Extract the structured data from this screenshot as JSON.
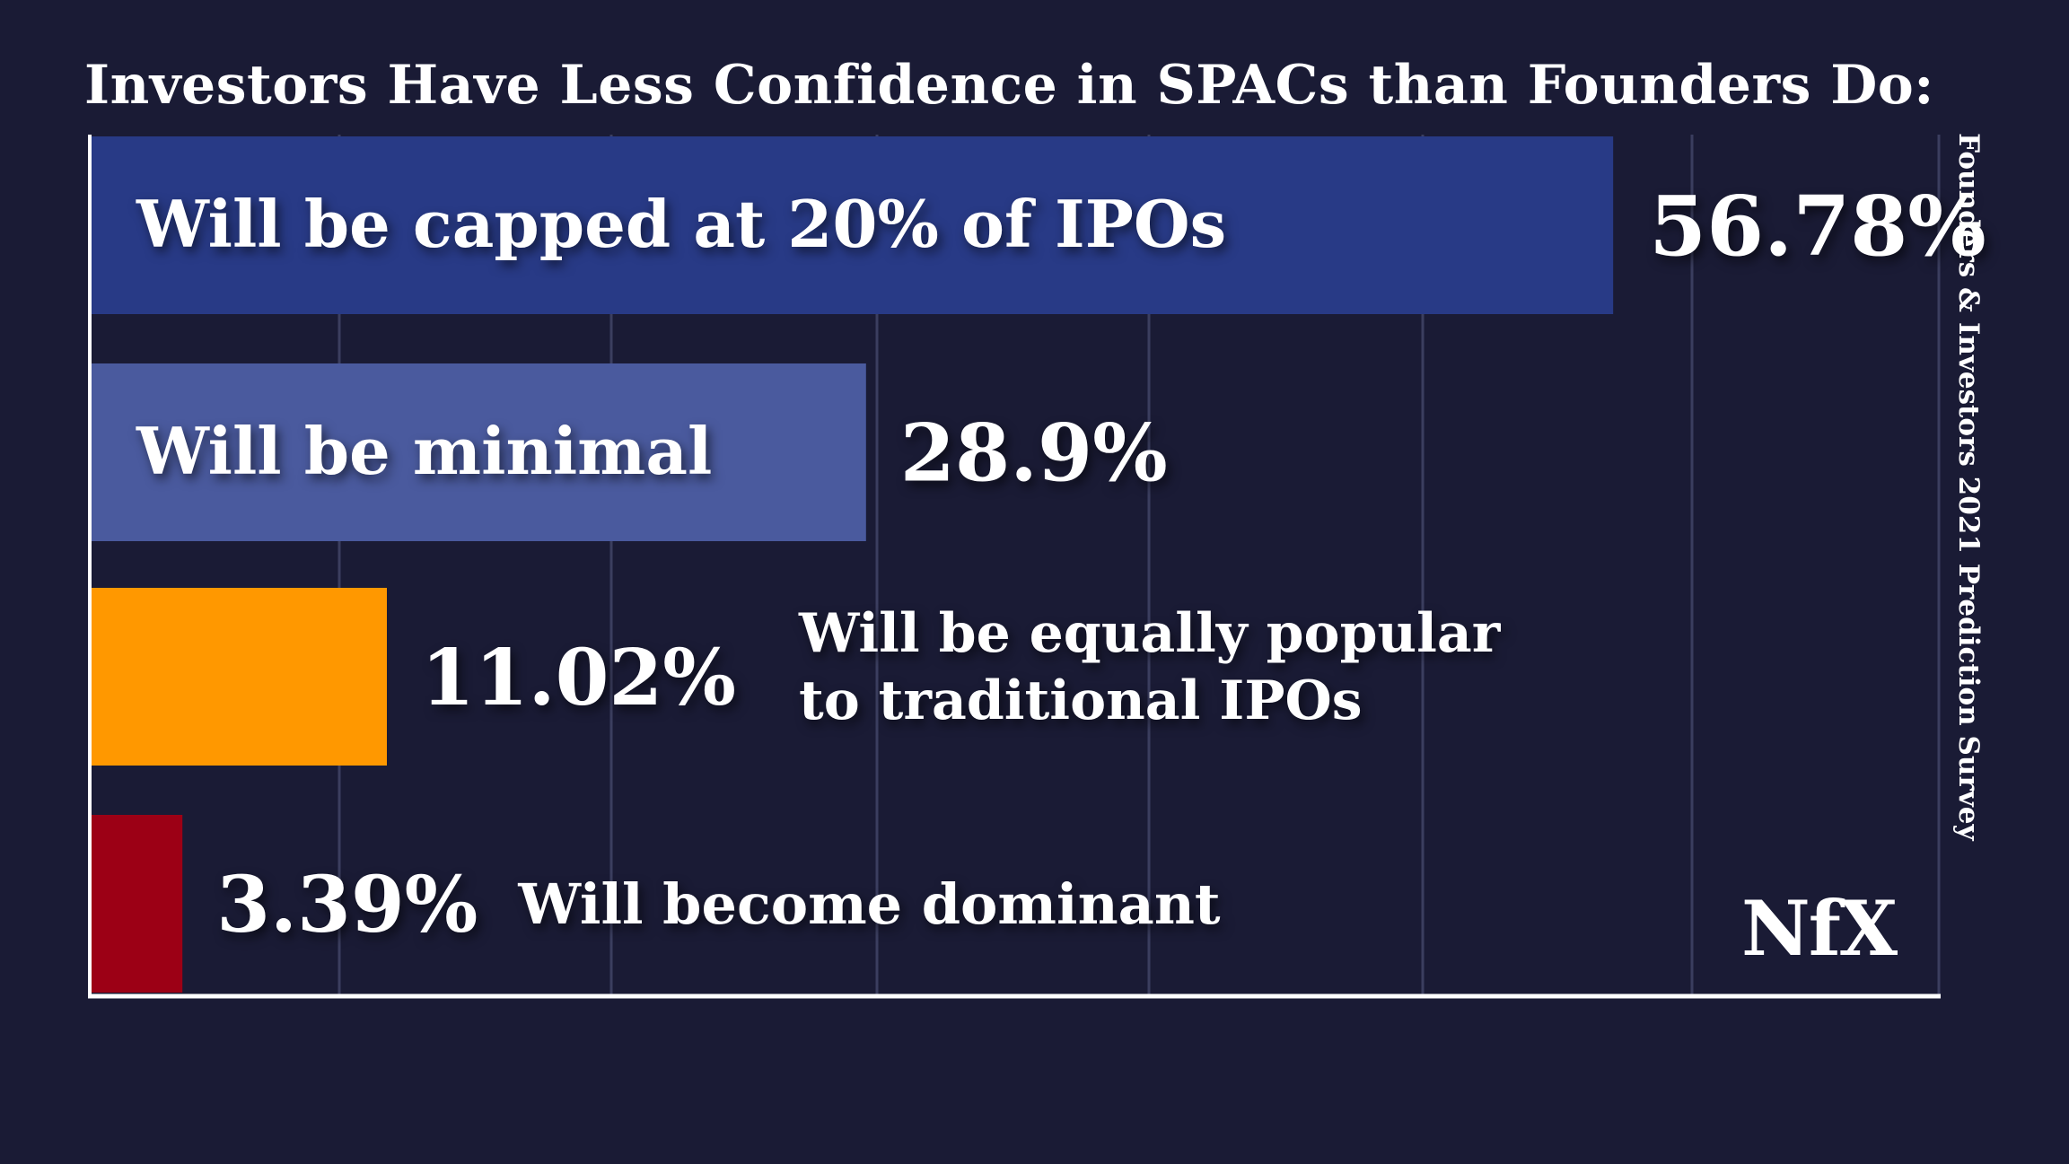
{
  "header": {
    "title": "Investors Have Less Confidence in SPACs than Founders Do:"
  },
  "side_note": "Founders & Investors 2021 Prediction Survey",
  "brand": {
    "logo_text": "NfX"
  },
  "chart_data": {
    "type": "bar",
    "orientation": "horizontal",
    "title": "Investors Have Less Confidence in SPACs than Founders Do:",
    "xlabel": "",
    "ylabel": "",
    "xlim": [
      0,
      69
    ],
    "grid": true,
    "categories": [
      "Will be capped at 20% of IPOs",
      "Will be minimal",
      "Will be equally popular to traditional IPOs",
      "Will become dominant"
    ],
    "category_lines": [
      [
        "Will be capped at 20% of IPOs"
      ],
      [
        "Will be minimal"
      ],
      [
        "Will be equally popular",
        "to traditional IPOs"
      ],
      [
        "Will become dominant"
      ]
    ],
    "label_position": [
      "inside",
      "inside",
      "outside",
      "outside"
    ],
    "values": [
      56.78,
      28.9,
      11.02,
      3.39
    ],
    "data_labels": [
      "56.78%",
      "28.9%",
      "11.02%",
      "3.39%"
    ],
    "colors": [
      "#283a86",
      "#4a5a9e",
      "#ff9800",
      "#9c0015"
    ]
  }
}
